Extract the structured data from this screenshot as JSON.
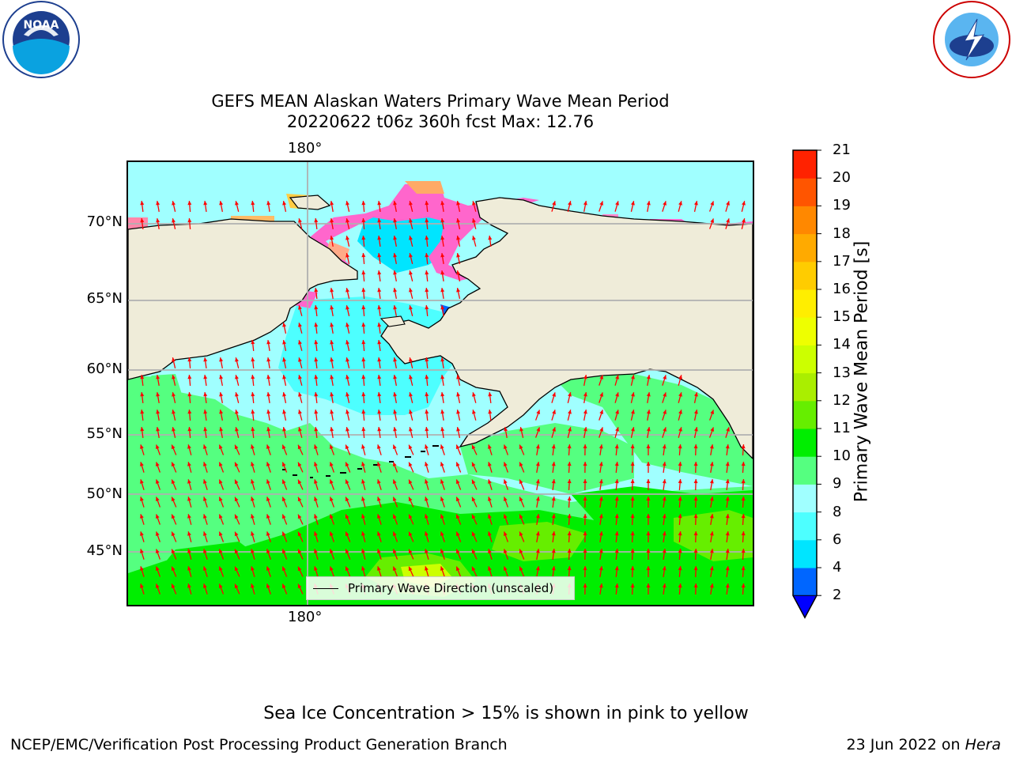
{
  "logos": {
    "noaa": {
      "text": "NOAA",
      "ring_text": "NATIONAL OCEANIC AND ATMOSPHERIC ADMINISTRATION · U.S. DEPARTMENT OF COMMERCE"
    },
    "nws": {
      "ring_text": "NATIONAL WEATHER SERVICE"
    }
  },
  "title": {
    "line1": "GEFS MEAN Alaskan Waters Primary Wave Mean Period",
    "line2": "20220622 t06z 360h fcst   Max: 12.76"
  },
  "map": {
    "lon_labels": {
      "top": "180°",
      "bottom": "180°"
    },
    "lat_labels": [
      "70°N",
      "65°N",
      "60°N",
      "55°N",
      "50°N",
      "45°N"
    ],
    "legend_label": "Primary Wave Direction (unscaled)",
    "colors": {
      "land": "#efecd9",
      "ocean_default": "#a0ffff",
      "arrow": "#ff0000",
      "grid": "#b0b0b0",
      "ice_pink": "#ff66cc"
    }
  },
  "colorbar": {
    "title": "Primary Wave Mean Period [s]",
    "ticks": [
      "2",
      "4",
      "6",
      "8",
      "9",
      "10",
      "11",
      "12",
      "13",
      "14",
      "15",
      "16",
      "17",
      "18",
      "19",
      "20",
      "21"
    ],
    "colors": [
      "#0066ff",
      "#00e5ff",
      "#4dffff",
      "#a0ffff",
      "#55ff80",
      "#00ee00",
      "#66ee00",
      "#aaee00",
      "#ccff00",
      "#eeff00",
      "#ffee00",
      "#ffcc00",
      "#ffaa00",
      "#ff8800",
      "#ff5500",
      "#ff2200"
    ],
    "under_color": "#0000ff"
  },
  "sea_ice_note": "Sea Ice Concentration > 15% is shown in pink to yellow",
  "footer": {
    "left": "NCEP/EMC/Verification Post Processing Product Generation Branch",
    "right_prefix": "23 Jun 2022 on ",
    "right_host": "Hera"
  }
}
